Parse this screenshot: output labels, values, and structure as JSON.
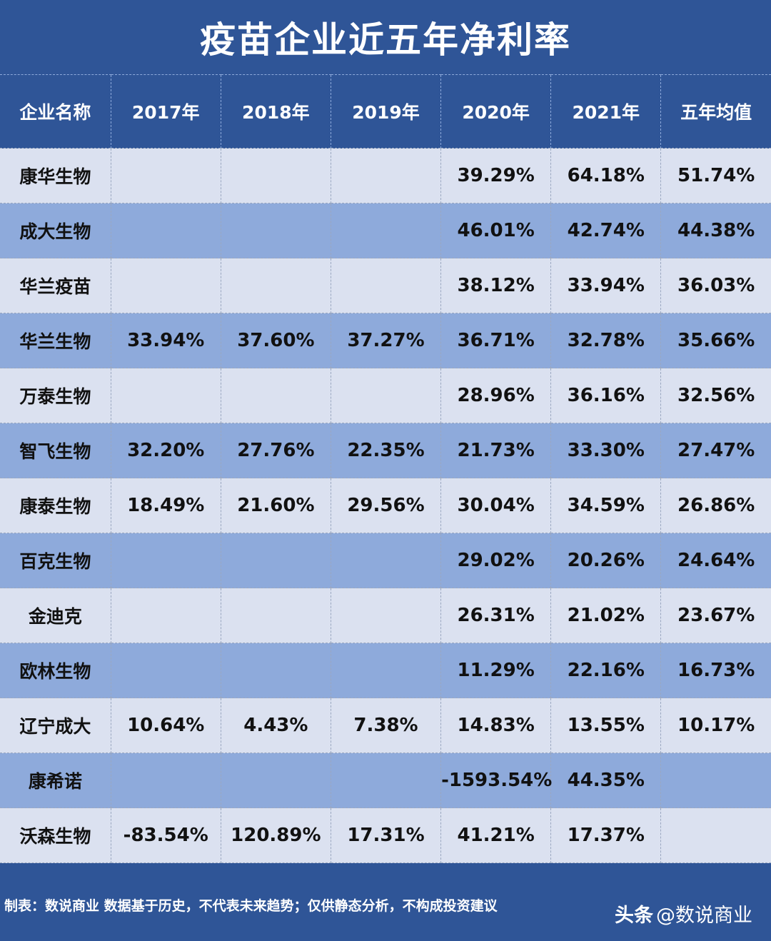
{
  "title": "疫苗企业近五年净利率",
  "table": {
    "headers": [
      "企业名称",
      "2017年",
      "2018年",
      "2019年",
      "2020年",
      "2021年",
      "五年均值"
    ],
    "rows": [
      {
        "name": "康华生物",
        "cells": [
          "",
          "",
          "",
          "39.29%",
          "64.18%",
          "51.74%"
        ]
      },
      {
        "name": "成大生物",
        "cells": [
          "",
          "",
          "",
          "46.01%",
          "42.74%",
          "44.38%"
        ]
      },
      {
        "name": "华兰疫苗",
        "cells": [
          "",
          "",
          "",
          "38.12%",
          "33.94%",
          "36.03%"
        ]
      },
      {
        "name": "华兰生物",
        "cells": [
          "33.94%",
          "37.60%",
          "37.27%",
          "36.71%",
          "32.78%",
          "35.66%"
        ]
      },
      {
        "name": "万泰生物",
        "cells": [
          "",
          "",
          "",
          "28.96%",
          "36.16%",
          "32.56%"
        ]
      },
      {
        "name": "智飞生物",
        "cells": [
          "32.20%",
          "27.76%",
          "22.35%",
          "21.73%",
          "33.30%",
          "27.47%"
        ]
      },
      {
        "name": "康泰生物",
        "cells": [
          "18.49%",
          "21.60%",
          "29.56%",
          "30.04%",
          "34.59%",
          "26.86%"
        ]
      },
      {
        "name": "百克生物",
        "cells": [
          "",
          "",
          "",
          "29.02%",
          "20.26%",
          "24.64%"
        ]
      },
      {
        "name": "金迪克",
        "cells": [
          "",
          "",
          "",
          "26.31%",
          "21.02%",
          "23.67%"
        ]
      },
      {
        "name": "欧林生物",
        "cells": [
          "",
          "",
          "",
          "11.29%",
          "22.16%",
          "16.73%"
        ]
      },
      {
        "name": "辽宁成大",
        "cells": [
          "10.64%",
          "4.43%",
          "7.38%",
          "14.83%",
          "13.55%",
          "10.17%"
        ]
      },
      {
        "name": "康希诺",
        "cells": [
          "",
          "",
          "",
          "-1593.54%",
          "44.35%",
          ""
        ]
      },
      {
        "name": "沃森生物",
        "cells": [
          "-83.54%",
          "120.89%",
          "17.31%",
          "41.21%",
          "17.37%",
          ""
        ]
      }
    ]
  },
  "footer": {
    "note": "制表：数说商业 数据基于历史，不代表未来趋势；仅供静态分析，不构成投资建议",
    "brand_name": "头条",
    "brand_handle": "@数说商业"
  },
  "colors": {
    "header_bg": "#2f5597",
    "row_light": "#dbe1f0",
    "row_dark": "#8eaadb"
  }
}
